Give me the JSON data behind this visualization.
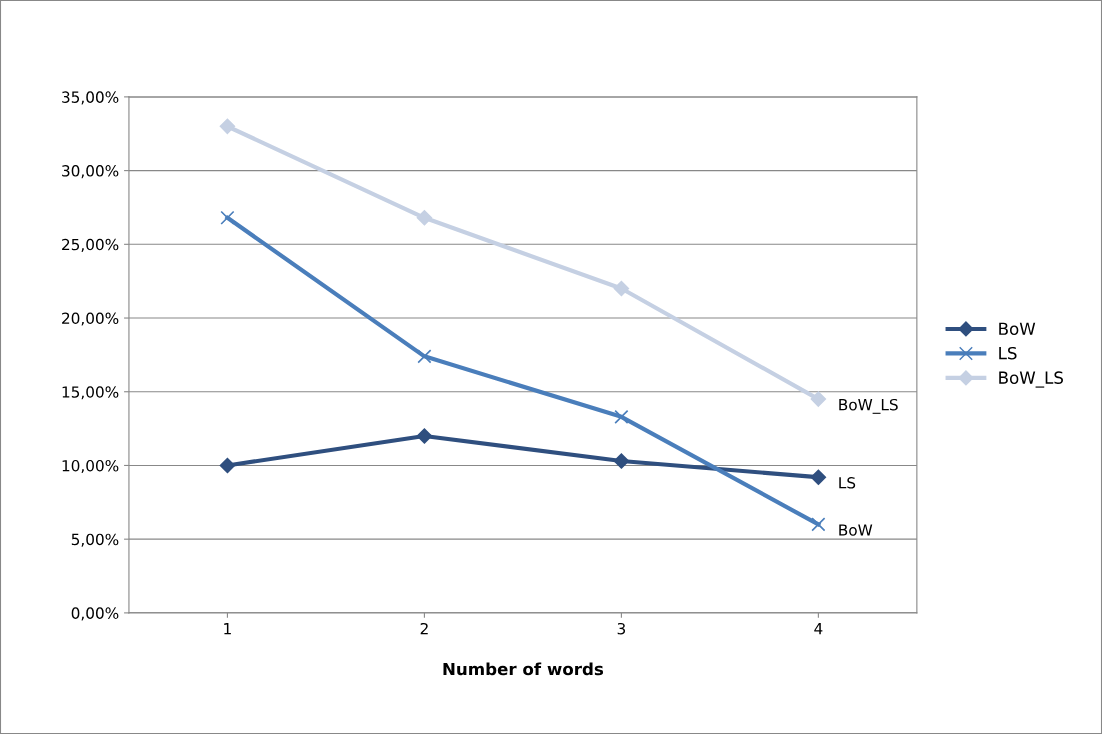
{
  "chart_data": {
    "type": "line",
    "xlabel": "Number of words",
    "categories": [
      "1",
      "2",
      "3",
      "4"
    ],
    "series": [
      {
        "name": "BoW",
        "color": "#2f4f7f",
        "marker": "diamond",
        "values": [
          10.0,
          12.0,
          10.3,
          9.2
        ]
      },
      {
        "name": "LS",
        "color": "#4a7ebb",
        "marker": "cross",
        "values": [
          26.8,
          17.4,
          13.3,
          6.0
        ]
      },
      {
        "name": "BoW_LS",
        "color": "#c5d0e3",
        "marker": "diamond",
        "values": [
          33.0,
          26.8,
          22.0,
          14.5
        ]
      }
    ],
    "ylim": [
      0,
      35
    ],
    "yticks": [
      {
        "value": 0,
        "label": "0,00%"
      },
      {
        "value": 5,
        "label": "5,00%"
      },
      {
        "value": 10,
        "label": "10,00%"
      },
      {
        "value": 15,
        "label": "15,00%"
      },
      {
        "value": 20,
        "label": "20,00%"
      },
      {
        "value": 25,
        "label": "25,00%"
      },
      {
        "value": 30,
        "label": "30,00%"
      },
      {
        "value": 35,
        "label": "35,00%"
      }
    ],
    "grid": "y",
    "legend": "right",
    "line_style": "solid",
    "annotations": [
      {
        "text": "BoW_LS",
        "x": "4",
        "y": 14.5
      },
      {
        "text": "LS",
        "x": "4",
        "y": 9.2
      },
      {
        "text": "BoW",
        "x": "4",
        "y": 6.0
      }
    ]
  }
}
